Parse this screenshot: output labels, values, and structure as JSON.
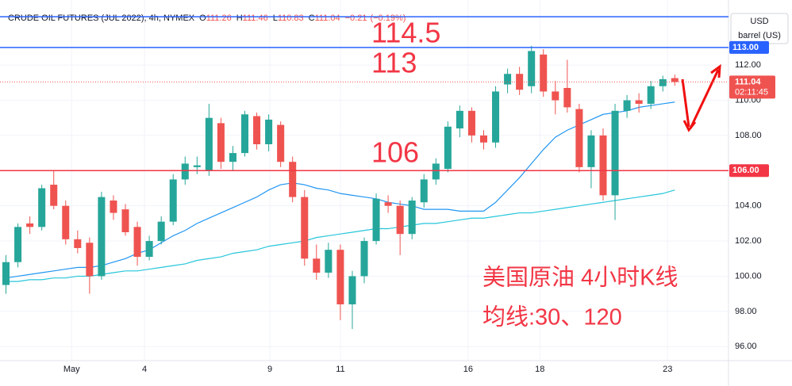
{
  "chart_data": {
    "type": "candlestick",
    "title": "CRUDE OIL FUTURES (JUL 2022), 4h, NYMEX",
    "ohlc": [
      {
        "prefix": "O",
        "value": 111.26
      },
      {
        "prefix": "H",
        "value": 111.46
      },
      {
        "prefix": "L",
        "value": 110.83
      },
      {
        "prefix": "C",
        "value": 111.04
      }
    ],
    "change": {
      "value": -0.21,
      "label": "−0.21"
    },
    "change_pct": {
      "value": -0.19,
      "label": "(−0.19%)"
    },
    "currency": "USD",
    "unit": "barrel (US)",
    "last_price": 111.04,
    "countdown": "02:11:45",
    "up_color": "#26a69a",
    "down_color": "#ef5350",
    "grid": true,
    "x": [
      0,
      1,
      2,
      3,
      4,
      5,
      6,
      7,
      8,
      9,
      10,
      11,
      12,
      13,
      14,
      15,
      16,
      17,
      18,
      19,
      20,
      21,
      22,
      23,
      24,
      25,
      26,
      27,
      28,
      29,
      30,
      31,
      32,
      33,
      34,
      35,
      36,
      37,
      38,
      39,
      40,
      41,
      42,
      43,
      44,
      45,
      46,
      47,
      48,
      49,
      50,
      51,
      52,
      53,
      54,
      55,
      56
    ],
    "open": [
      99.5,
      100.8,
      103.0,
      102.8,
      105.2,
      104.0,
      102.1,
      101.9,
      100.0,
      104.3,
      103.8,
      102.8,
      101.1,
      102.0,
      103.1,
      105.5,
      106.2,
      106.0,
      108.7,
      106.5,
      107.0,
      109.1,
      107.5,
      108.6,
      106.5,
      104.5,
      101.0,
      100.2,
      101.5,
      98.4,
      100.0,
      102.0,
      104.2,
      104.0,
      102.4,
      104.2,
      105.5,
      106.1,
      108.4,
      109.4,
      108.0,
      107.6,
      110.9,
      111.5,
      110.8,
      112.6,
      110.5,
      110.7,
      109.5,
      106.2,
      108.0,
      104.6,
      109.4,
      110.0,
      109.8,
      110.8,
      111.26
    ],
    "high": [
      101.2,
      103.0,
      103.4,
      105.2,
      106.0,
      104.3,
      102.6,
      102.2,
      104.8,
      104.6,
      104.1,
      103.1,
      102.3,
      103.4,
      105.8,
      106.8,
      106.8,
      109.8,
      109.0,
      107.4,
      109.4,
      109.3,
      109.2,
      108.8,
      106.8,
      104.9,
      101.8,
      101.9,
      101.8,
      100.3,
      102.2,
      104.7,
      104.6,
      104.3,
      104.5,
      105.8,
      106.7,
      108.8,
      109.7,
      109.6,
      108.3,
      110.8,
      111.8,
      111.9,
      113.1,
      112.9,
      111.1,
      112.3,
      109.8,
      108.3,
      108.4,
      109.8,
      110.3,
      110.4,
      111.1,
      111.4,
      111.46
    ],
    "low": [
      99.0,
      100.5,
      102.4,
      102.6,
      103.8,
      101.8,
      101.3,
      99.0,
      99.8,
      103.2,
      102.3,
      100.6,
      100.9,
      101.8,
      102.9,
      105.2,
      105.8,
      105.7,
      106.1,
      106.0,
      106.8,
      107.2,
      107.1,
      106.2,
      104.2,
      100.6,
      99.8,
      99.9,
      97.5,
      97.0,
      99.6,
      101.8,
      103.6,
      101.2,
      102.1,
      103.9,
      105.2,
      105.9,
      107.9,
      107.6,
      107.2,
      107.3,
      110.4,
      110.3,
      110.4,
      110.2,
      109.2,
      109.3,
      105.9,
      105.0,
      104.3,
      103.2,
      109.0,
      109.3,
      109.5,
      110.5,
      110.83
    ],
    "close": [
      100.8,
      102.8,
      102.8,
      105.0,
      104.0,
      102.1,
      101.6,
      100.0,
      104.5,
      103.6,
      102.5,
      101.1,
      102.0,
      103.1,
      105.5,
      106.4,
      106.3,
      109.0,
      106.5,
      107.0,
      109.2,
      107.5,
      108.9,
      106.5,
      104.5,
      101.0,
      100.2,
      101.5,
      98.4,
      100.0,
      102.0,
      104.4,
      104.0,
      102.4,
      104.3,
      105.5,
      106.4,
      108.5,
      109.4,
      108.0,
      107.6,
      110.5,
      111.5,
      110.6,
      112.8,
      110.5,
      110.0,
      109.6,
      106.2,
      108.0,
      104.6,
      109.4,
      110.0,
      109.8,
      110.8,
      111.2,
      111.04
    ],
    "series": [
      {
        "color": "#2196f3",
        "values": [
          99.9,
          100.0,
          100.1,
          100.2,
          100.3,
          100.4,
          100.5,
          100.5,
          100.6,
          100.8,
          101.0,
          101.3,
          101.5,
          101.9,
          102.3,
          102.6,
          103.0,
          103.3,
          103.6,
          103.9,
          104.2,
          104.5,
          104.9,
          105.2,
          105.3,
          105.2,
          105.0,
          104.9,
          104.7,
          104.6,
          104.5,
          104.4,
          104.2,
          104.1,
          104.0,
          103.8,
          103.8,
          103.8,
          103.7,
          103.7,
          103.7,
          104.2,
          104.9,
          105.6,
          106.4,
          107.2,
          107.9,
          108.3,
          108.6,
          108.9,
          109.2,
          109.3,
          109.4,
          109.6,
          109.7,
          109.8,
          109.9
        ]
      },
      {
        "color": "#26c6da",
        "values": [
          99.7,
          99.7,
          99.8,
          99.8,
          99.9,
          99.9,
          100.0,
          100.0,
          100.1,
          100.2,
          100.3,
          100.3,
          100.4,
          100.5,
          100.6,
          100.7,
          100.9,
          101.0,
          101.1,
          101.3,
          101.4,
          101.5,
          101.7,
          101.8,
          101.9,
          102.0,
          102.2,
          102.3,
          102.4,
          102.5,
          102.6,
          102.7,
          102.7,
          102.8,
          102.9,
          103.0,
          103.0,
          103.1,
          103.2,
          103.3,
          103.3,
          103.4,
          103.5,
          103.6,
          103.6,
          103.7,
          103.8,
          103.9,
          104.0,
          104.1,
          104.2,
          104.3,
          104.4,
          104.5,
          104.6,
          104.7,
          104.9
        ]
      }
    ],
    "hlines": [
      {
        "value": 114.75,
        "color": "#2962ff"
      },
      {
        "value": 113,
        "label": "113.00",
        "color": "#2962ff"
      },
      {
        "value": 106,
        "label": "106.00",
        "color": "#f23645"
      }
    ],
    "annotations": [
      "114.5",
      "113",
      "106",
      "美国原油 4小时K线",
      "均线:30、120"
    ],
    "xlim": [
      -0.5,
      60.5
    ],
    "xticks": [
      {
        "value": 5.5,
        "label": "May"
      },
      {
        "value": 11.6,
        "label": "4"
      },
      {
        "value": 22.1,
        "label": "9"
      },
      {
        "value": 28.0,
        "label": "11"
      },
      {
        "value": 38.7,
        "label": "16"
      },
      {
        "value": 44.7,
        "label": "18"
      },
      {
        "value": 55.4,
        "label": "23"
      }
    ],
    "ylim": [
      95.2,
      115.7
    ],
    "yticks": [
      {
        "value": 96,
        "label": "96.00"
      },
      {
        "value": 98,
        "label": "98.00"
      },
      {
        "value": 100,
        "label": "100.00"
      },
      {
        "value": 102,
        "label": "102.00"
      },
      {
        "value": 104,
        "label": "104.00"
      },
      {
        "value": 106,
        "label": "106.00"
      },
      {
        "value": 108,
        "label": "108.00"
      },
      {
        "value": 110,
        "label": "110.00"
      },
      {
        "value": 112,
        "label": "112.00"
      }
    ]
  }
}
